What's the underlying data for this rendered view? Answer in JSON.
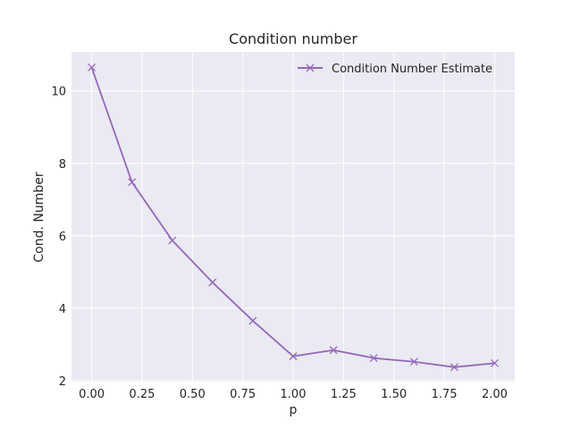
{
  "chart_data": {
    "type": "line",
    "title": "Condition number",
    "xlabel": "p",
    "ylabel": "Cond. Number",
    "x": [
      0.0,
      0.2,
      0.4,
      0.6,
      0.8,
      1.0,
      1.2,
      1.4,
      1.6,
      1.8,
      2.0
    ],
    "series": [
      {
        "name": "Condition Number Estimate",
        "values": [
          10.65,
          7.48,
          5.87,
          4.71,
          3.65,
          2.67,
          2.84,
          2.62,
          2.52,
          2.37,
          2.48
        ],
        "color": "#9467bd",
        "marker": "x"
      }
    ],
    "xlim": [
      -0.1,
      2.1
    ],
    "ylim": [
      1.97,
      11.08
    ],
    "xticks": [
      "0.00",
      "0.25",
      "0.50",
      "0.75",
      "1.00",
      "1.25",
      "1.50",
      "1.75",
      "2.00"
    ],
    "yticks": [
      "2",
      "4",
      "6",
      "8",
      "10"
    ],
    "grid": true,
    "legend_position": "upper right",
    "background": "#eaeaf2",
    "grid_color": "#ffffff"
  }
}
